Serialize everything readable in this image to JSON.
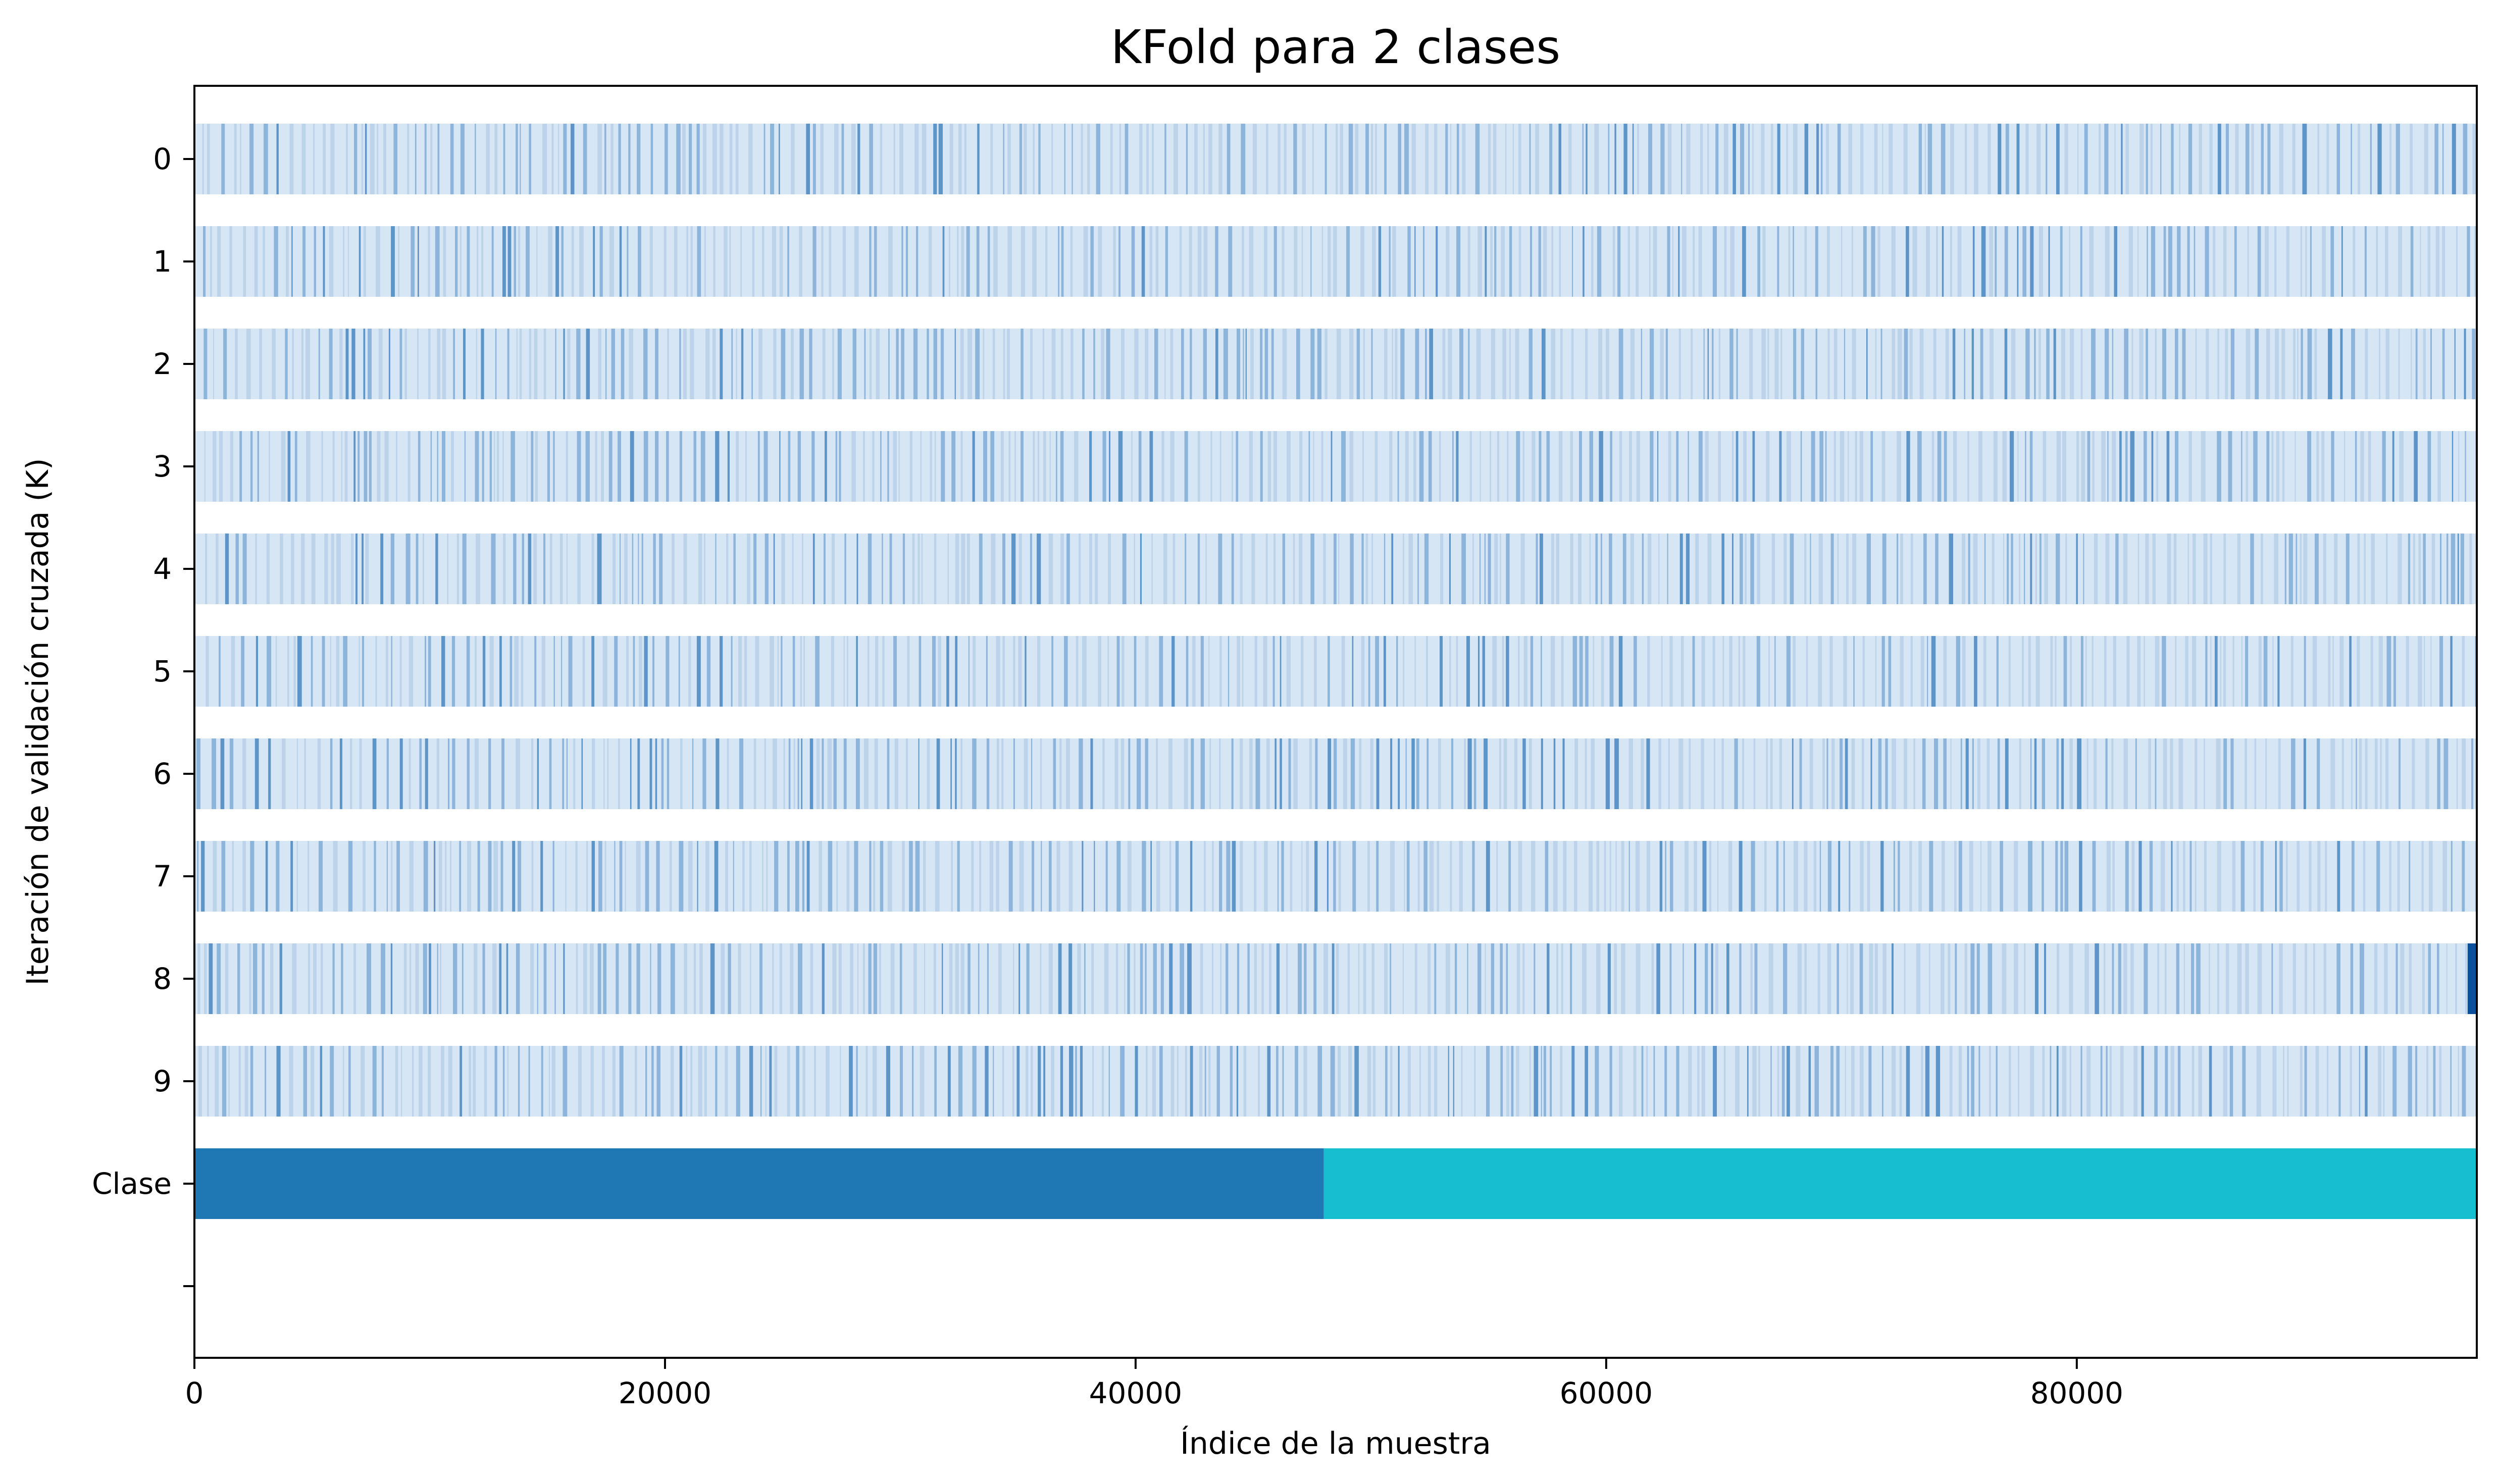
{
  "chart_data": {
    "type": "heatmap",
    "title": "KFold para 2 clases",
    "xlabel": "Índice de la muestra",
    "ylabel": "Iteración de validación cruzada (K)",
    "xlim": [
      0,
      97000
    ],
    "x_ticks": [
      "0",
      "20000",
      "40000",
      "60000",
      "80000"
    ],
    "x_tick_values": [
      0,
      20000,
      40000,
      60000,
      80000
    ],
    "y_ticks": [
      "0",
      "1",
      "2",
      "3",
      "4",
      "5",
      "6",
      "7",
      "8",
      "9",
      "Clase",
      ""
    ],
    "n_samples": 97000,
    "grid": false,
    "folds": [
      {
        "label": "0",
        "train": "light-blue",
        "test": "scattered-blue"
      },
      {
        "label": "1",
        "train": "light-blue",
        "test": "scattered-blue"
      },
      {
        "label": "2",
        "train": "light-blue",
        "test": "scattered-blue"
      },
      {
        "label": "3",
        "train": "light-blue",
        "test": "scattered-blue"
      },
      {
        "label": "4",
        "train": "light-blue",
        "test": "scattered-blue"
      },
      {
        "label": "5",
        "train": "light-blue",
        "test": "scattered-blue"
      },
      {
        "label": "6",
        "train": "light-blue",
        "test": "scattered-blue"
      },
      {
        "label": "7",
        "train": "light-blue",
        "test": "scattered-blue"
      },
      {
        "label": "8",
        "train": "light-blue",
        "test": "scattered-blue",
        "tail_dark": true
      },
      {
        "label": "9",
        "train": "light-blue",
        "test": "scattered-blue"
      }
    ],
    "class_segments": [
      {
        "class": 0,
        "start": 0,
        "end": 48000,
        "color": "#1f77b4"
      },
      {
        "class": 1,
        "start": 48000,
        "end": 97000,
        "color": "#17becf"
      }
    ],
    "colors": {
      "fold_base": "#d6e6f4",
      "fold_stripe_light": "#bcd3ea",
      "fold_stripe_mid": "#8db4da",
      "fold_stripe_dark": "#5d95c9",
      "fold8_tail": "#08519c",
      "class_0": "#1f77b4",
      "class_1": "#17becf"
    }
  }
}
